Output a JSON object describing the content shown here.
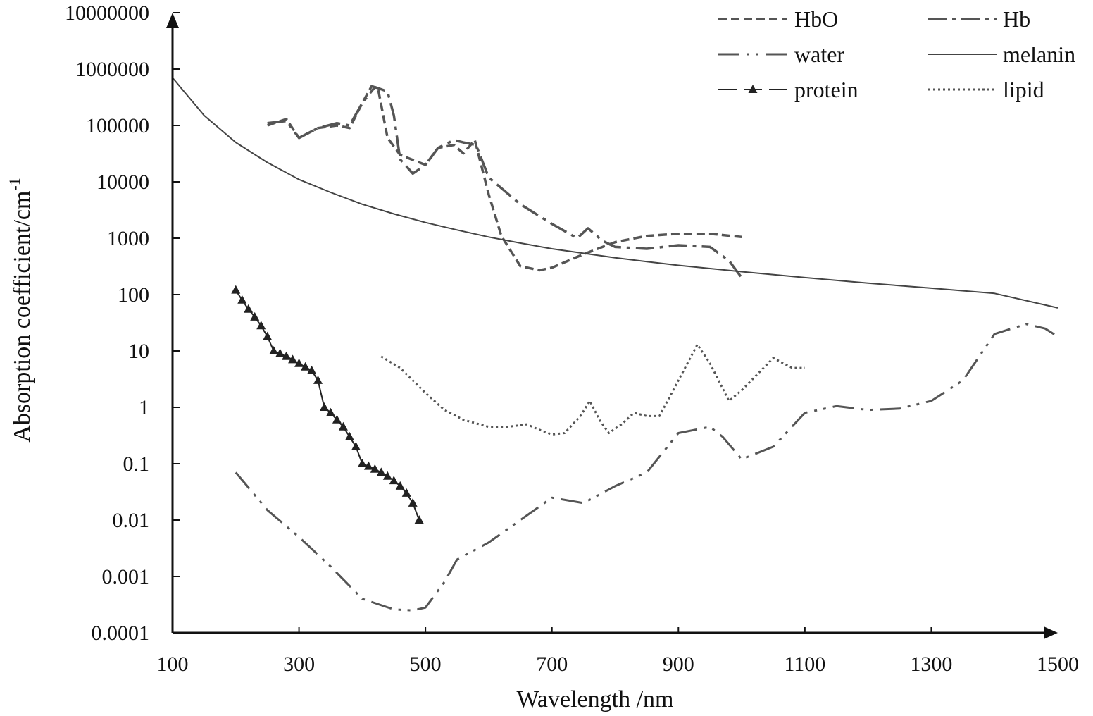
{
  "chart_data": {
    "type": "line",
    "title": "",
    "xlabel": "Wavelength /nm",
    "ylabel": "Absorption coefficient/cm",
    "ylabel_superscript": "-1",
    "xlim": [
      100,
      1500
    ],
    "ylim": [
      0.0001,
      10000000
    ],
    "yscale": "log",
    "grid": false,
    "legend_position": "top-right",
    "x_ticks": [
      100,
      300,
      500,
      700,
      900,
      1100,
      1300,
      1500
    ],
    "x_tick_labels": [
      "100",
      "300",
      "500",
      "700",
      "900",
      "1100",
      "1300",
      "1500"
    ],
    "y_ticks": [
      0.0001,
      0.001,
      0.01,
      0.1,
      1,
      10,
      100,
      1000,
      10000,
      100000,
      1000000,
      10000000
    ],
    "y_tick_labels": [
      "0.0001",
      "0.001",
      "0.01",
      "0.1",
      "1",
      "10",
      "100",
      "1000",
      "10000",
      "100000",
      "1000000",
      "10000000"
    ],
    "series": [
      {
        "name": "HbO",
        "color": "#555555",
        "style": "dashed",
        "x": [
          250,
          280,
          300,
          330,
          360,
          380,
          400,
          415,
          425,
          440,
          460,
          500,
          520,
          545,
          560,
          578,
          600,
          620,
          650,
          680,
          700,
          750,
          800,
          850,
          900,
          950,
          1000
        ],
        "y": [
          100000,
          130000,
          60000,
          90000,
          100000,
          90000,
          250000,
          500000,
          450000,
          60000,
          30000,
          20000,
          40000,
          45000,
          32000,
          55000,
          6000,
          1100,
          320,
          270,
          300,
          520,
          850,
          1100,
          1200,
          1200,
          1050
        ]
      },
      {
        "name": "Hb",
        "color": "#555555",
        "style": "dashdot",
        "x": [
          250,
          280,
          300,
          330,
          360,
          380,
          400,
          420,
          440,
          450,
          460,
          480,
          500,
          520,
          545,
          560,
          580,
          600,
          650,
          700,
          740,
          757,
          780,
          800,
          850,
          900,
          950,
          980,
          1000
        ],
        "y": [
          110000,
          120000,
          60000,
          90000,
          110000,
          100000,
          250000,
          480000,
          400000,
          150000,
          25000,
          14000,
          20000,
          40000,
          55000,
          50000,
          45000,
          12000,
          4000,
          1800,
          1000,
          1500,
          900,
          700,
          650,
          750,
          700,
          400,
          200
        ]
      },
      {
        "name": "water",
        "color": "#555555",
        "style": "longdashdotdot",
        "x": [
          200,
          250,
          300,
          350,
          400,
          450,
          480,
          500,
          530,
          550,
          600,
          650,
          700,
          750,
          800,
          850,
          900,
          950,
          970,
          1000,
          1050,
          1100,
          1150,
          1200,
          1250,
          1300,
          1350,
          1400,
          1450,
          1480,
          1500
        ],
        "y": [
          0.07,
          0.015,
          0.005,
          0.0015,
          0.0004,
          0.00026,
          0.00025,
          0.00028,
          0.0008,
          0.002,
          0.004,
          0.01,
          0.025,
          0.02,
          0.04,
          0.07,
          0.35,
          0.45,
          0.3,
          0.12,
          0.2,
          0.8,
          1.05,
          0.9,
          0.95,
          1.3,
          3,
          20,
          30,
          25,
          18
        ]
      },
      {
        "name": "melanin",
        "color": "#444444",
        "style": "solid",
        "x": [
          100,
          150,
          200,
          250,
          300,
          350,
          400,
          450,
          500,
          550,
          600,
          650,
          700,
          750,
          800,
          850,
          900,
          950,
          1000,
          1100,
          1200,
          1300,
          1400,
          1500
        ],
        "y": [
          700000,
          150000,
          50000,
          22000,
          11000,
          6500,
          4000,
          2700,
          1900,
          1400,
          1050,
          820,
          650,
          540,
          450,
          385,
          330,
          290,
          255,
          200,
          160,
          130,
          105,
          58
        ]
      },
      {
        "name": "protein",
        "color": "#222222",
        "style": "longdash-triangle",
        "x": [
          200,
          210,
          220,
          230,
          240,
          250,
          260,
          270,
          280,
          290,
          300,
          310,
          320,
          330,
          340,
          350,
          360,
          370,
          380,
          390,
          400,
          410,
          420,
          430,
          440,
          450,
          460,
          470,
          480,
          490
        ],
        "y": [
          120,
          80,
          55,
          40,
          28,
          18,
          10,
          9,
          8,
          7,
          6,
          5.2,
          4.5,
          3,
          1,
          0.8,
          0.6,
          0.45,
          0.3,
          0.2,
          0.1,
          0.09,
          0.08,
          0.07,
          0.06,
          0.05,
          0.04,
          0.03,
          0.02,
          0.01
        ]
      },
      {
        "name": "lipid",
        "color": "#555555",
        "style": "dotted",
        "x": [
          430,
          460,
          500,
          530,
          560,
          600,
          630,
          660,
          680,
          700,
          720,
          745,
          760,
          775,
          790,
          810,
          830,
          850,
          870,
          900,
          930,
          950,
          980,
          1000,
          1050,
          1080,
          1100
        ],
        "y": [
          8,
          5,
          1.8,
          0.9,
          0.6,
          0.45,
          0.45,
          0.5,
          0.4,
          0.33,
          0.35,
          0.7,
          1.3,
          0.6,
          0.35,
          0.5,
          0.8,
          0.7,
          0.7,
          3,
          13,
          6,
          1.3,
          2,
          7.5,
          5,
          5
        ]
      }
    ]
  }
}
